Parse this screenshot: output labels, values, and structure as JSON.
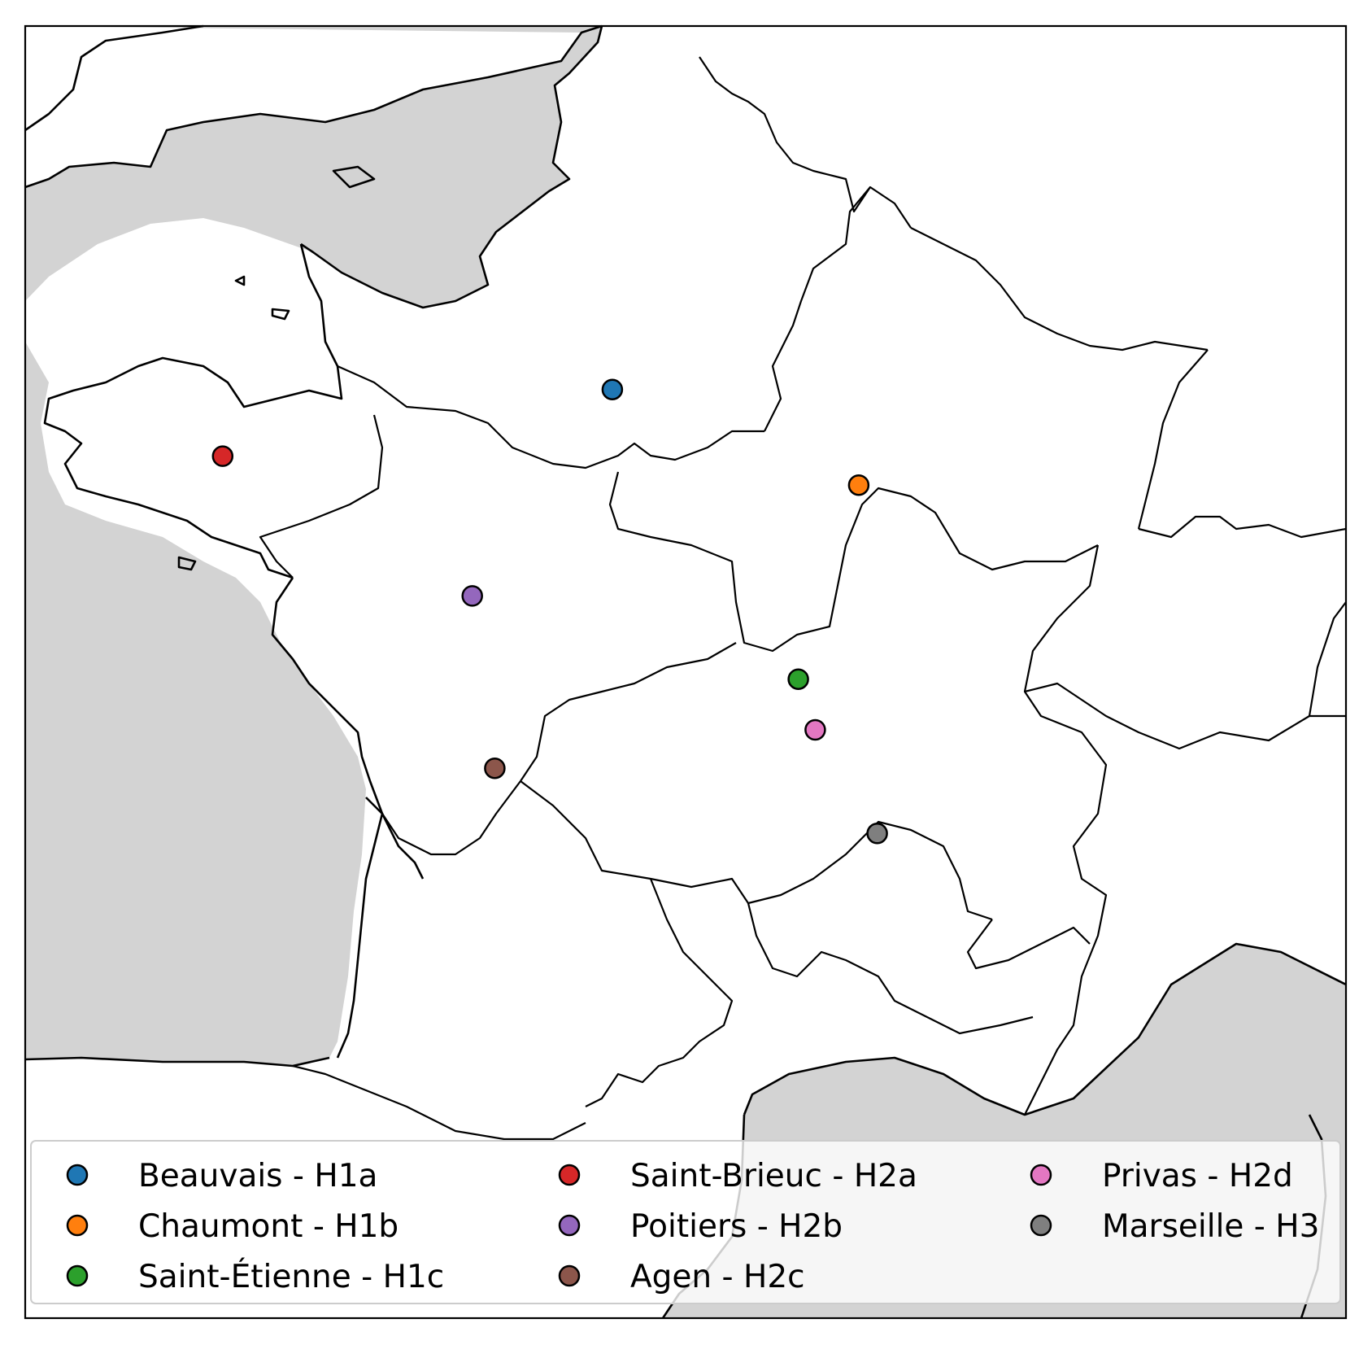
{
  "map": {
    "cities": [
      {
        "name": "Beauvais",
        "zone": "H1a",
        "label": "Beauvais - H1a",
        "color": "#1f77b4",
        "lon": 2.08,
        "lat": 49.43
      },
      {
        "name": "Chaumont",
        "zone": "H1b",
        "label": "Chaumont - H1b",
        "color": "#ff7f0e",
        "lon": 5.14,
        "lat": 48.11
      },
      {
        "name": "Saint-Étienne",
        "zone": "H1c",
        "label": "Saint-Étienne - H1c",
        "color": "#2ca02c",
        "lon": 4.39,
        "lat": 45.43
      },
      {
        "name": "Saint-Brieuc",
        "zone": "H2a",
        "label": "Saint-Brieuc - H2a",
        "color": "#d62728",
        "lon": -2.76,
        "lat": 48.51
      },
      {
        "name": "Poitiers",
        "zone": "H2b",
        "label": "Poitiers - H2b",
        "color": "#9467bd",
        "lon": 0.34,
        "lat": 46.58
      },
      {
        "name": "Agen",
        "zone": "H2c",
        "label": "Agen - H2c",
        "color": "#8c564b",
        "lon": 0.62,
        "lat": 44.2
      },
      {
        "name": "Privas",
        "zone": "H2d",
        "label": "Privas - H2d",
        "color": "#e377c2",
        "lon": 4.6,
        "lat": 44.73
      },
      {
        "name": "Marseille",
        "zone": "H3",
        "label": "Marseille - H3",
        "color": "#7f7f7f",
        "lon": 5.37,
        "lat": 43.3
      }
    ]
  },
  "colors": {
    "land": "#ffffff",
    "sea": "#d3d3d3",
    "outline": "#000000"
  }
}
